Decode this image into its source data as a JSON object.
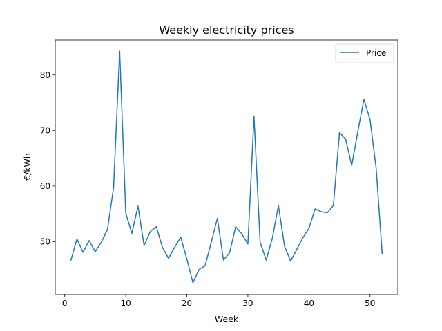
{
  "chart_data": {
    "type": "line",
    "title": "Weekly electricity prices",
    "xlabel": "Week",
    "ylabel": "€/kWh",
    "xlim": [
      -1.55,
      54.55
    ],
    "ylim": [
      40.5,
      86.3
    ],
    "xticks": [
      0,
      10,
      20,
      30,
      40,
      50
    ],
    "yticks": [
      50,
      60,
      70,
      80
    ],
    "grid": false,
    "legend": {
      "position": "top-right",
      "entries": [
        "Price"
      ]
    },
    "series": [
      {
        "name": "Price",
        "color": "#1f77b4",
        "x": [
          1,
          2,
          3,
          4,
          5,
          6,
          7,
          8,
          9,
          10,
          11,
          12,
          13,
          14,
          15,
          16,
          17,
          18,
          19,
          20,
          21,
          22,
          23,
          24,
          25,
          26,
          27,
          28,
          29,
          30,
          31,
          32,
          33,
          34,
          35,
          36,
          37,
          38,
          39,
          40,
          41,
          42,
          43,
          44,
          45,
          46,
          47,
          48,
          49,
          50,
          51,
          52
        ],
        "values": [
          46.6,
          50.5,
          48.1,
          50.2,
          48.2,
          49.9,
          52.2,
          59.7,
          84.3,
          55.1,
          51.5,
          56.4,
          49.3,
          51.8,
          52.7,
          49.0,
          47.0,
          49.0,
          50.8,
          46.9,
          42.6,
          45.0,
          45.7,
          49.9,
          54.2,
          46.7,
          48.0,
          52.7,
          51.4,
          49.6,
          72.6,
          49.9,
          46.7,
          50.6,
          56.5,
          49.2,
          46.5,
          48.6,
          50.7,
          52.4,
          55.9,
          55.4,
          55.2,
          56.5,
          69.6,
          68.5,
          63.7,
          69.8,
          75.6,
          72.0,
          63.3,
          47.7
        ]
      }
    ]
  }
}
